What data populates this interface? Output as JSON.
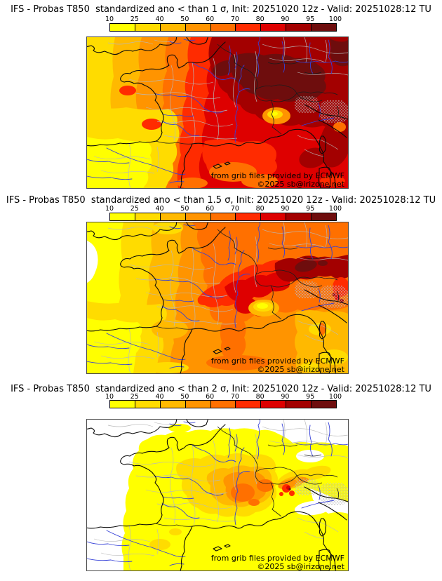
{
  "panels": [
    {
      "title": "IFS - Probas T850  standardized ano < than 1 σ, Init: 20251020 12z - Valid: 20251028:12 TU",
      "credit1": "from grib files provided by ECMWF",
      "credit2": "©2025 sb@irizone.net"
    },
    {
      "title": "IFS - Probas T850  standardized ano < than 1.5 σ, Init: 20251020 12z - Valid: 20251028:12 TU",
      "credit1": "from grib files provided by ECMWF",
      "credit2": "©2025 sb@irizone.net"
    },
    {
      "title": "IFS - Probas T850  standardized ano < than 2 σ, Init: 20251020 12z - Valid: 20251028:12 TU",
      "credit1": "from grib files provided by ECMWF",
      "credit2": "©2025 sb@irizone.net"
    }
  ],
  "colorbar": {
    "ticks": [
      "10",
      "25",
      "40",
      "50",
      "60",
      "70",
      "80",
      "90",
      "95",
      "100"
    ],
    "colors": [
      "#FFFF00",
      "#FFDC00",
      "#FFB900",
      "#FF9400",
      "#FF7000",
      "#FF2B00",
      "#DE0000",
      "#A30000",
      "#6E0D0D"
    ]
  },
  "map_colors": {
    "sea_land_lines": "#0a0a0a",
    "rivers": "#3540d8",
    "admin_boundaries": "#b9b9b9",
    "no_data_terrain": "#b9b9b9",
    "background": "#ffffff"
  }
}
